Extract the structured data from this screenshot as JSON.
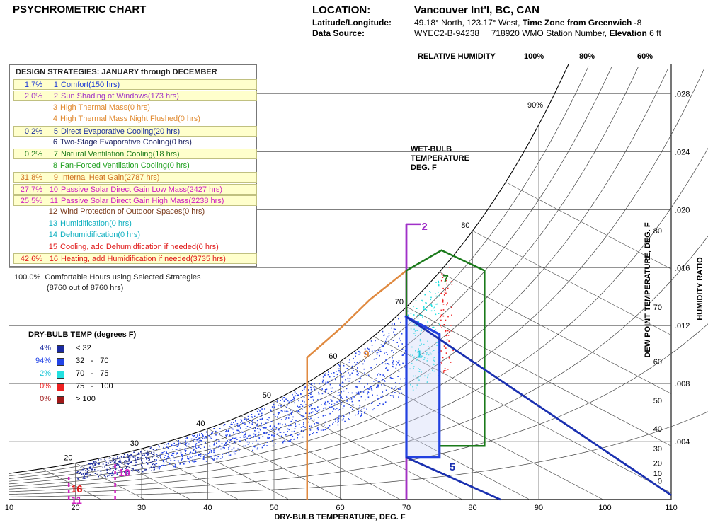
{
  "header": {
    "title": "PSYCHROMETRIC CHART",
    "location_label": "LOCATION:",
    "location_value": "Vancouver Int'l, BC, CAN",
    "latlon_label": "Latitude/Longitude:",
    "latlon_value_a": "49.18° North, 123.17° West,",
    "latlon_bold": "Time Zone from Greenwich",
    "latlon_tz": "-8",
    "source_label": "Data Source:",
    "source_value": "WYEC2-B-94238     718920 WMO Station Number,",
    "source_bold": "Elevation",
    "source_elev": "6 ft"
  },
  "strategies": {
    "title": "DESIGN STRATEGIES:  JANUARY through DECEMBER",
    "items": [
      {
        "pct": "1.7%",
        "num": "1",
        "label": "Comfort(150 hrs)",
        "color": "#1c3ad6",
        "selected": true
      },
      {
        "pct": "2.0%",
        "num": "2",
        "label": "Sun Shading of Windows(173 hrs)",
        "color": "#a030c8",
        "selected": true
      },
      {
        "pct": "",
        "num": "3",
        "label": "High Thermal Mass(0 hrs)",
        "color": "#e08a30",
        "selected": false
      },
      {
        "pct": "",
        "num": "4",
        "label": "High Thermal Mass Night Flushed(0 hrs)",
        "color": "#e08a30",
        "selected": false
      },
      {
        "pct": "0.2%",
        "num": "5",
        "label": "Direct Evaporative Cooling(20 hrs)",
        "color": "#1a2fa0",
        "selected": true
      },
      {
        "pct": "",
        "num": "6",
        "label": "Two-Stage Evaporative Cooling(0 hrs)",
        "color": "#1a2060",
        "selected": false
      },
      {
        "pct": "0.2%",
        "num": "7",
        "label": "Natural Ventilation Cooling(18 hrs)",
        "color": "#1a7a1a",
        "selected": true
      },
      {
        "pct": "",
        "num": "8",
        "label": "Fan-Forced Ventilation Cooling(0 hrs)",
        "color": "#20a020",
        "selected": false
      },
      {
        "pct": "31.8%",
        "num": "9",
        "label": "Internal Heat Gain(2787 hrs)",
        "color": "#d07020",
        "selected": true
      },
      {
        "pct": "27.7%",
        "num": "10",
        "label": "Passive Solar Direct Gain Low Mass(2427 hrs)",
        "color": "#d020c0",
        "selected": true
      },
      {
        "pct": "25.5%",
        "num": "11",
        "label": "Passive Solar Direct Gain High Mass(2238 hrs)",
        "color": "#d020c0",
        "selected": true
      },
      {
        "pct": "",
        "num": "12",
        "label": "Wind Protection of Outdoor Spaces(0 hrs)",
        "color": "#7a3a1a",
        "selected": false
      },
      {
        "pct": "",
        "num": "13",
        "label": "Humidification(0 hrs)",
        "color": "#10b0c0",
        "selected": false
      },
      {
        "pct": "",
        "num": "14",
        "label": "Dehumidification(0 hrs)",
        "color": "#10b0c0",
        "selected": false
      },
      {
        "pct": "",
        "num": "15",
        "label": "Cooling, add Dehumidfication if needed(0 hrs)",
        "color": "#e01818",
        "selected": false
      },
      {
        "pct": "42.6%",
        "num": "16",
        "label": "Heating, add Humidification if needed(3735 hrs)",
        "color": "#e01818",
        "selected": true
      }
    ]
  },
  "summary": {
    "line1": "100.0%  Comfortable Hours using Selected Strategies",
    "line2": "(8760 out of 8760 hrs)"
  },
  "legend": {
    "title": "DRY-BULB TEMP (degrees F)",
    "items": [
      {
        "pct": "4%",
        "range": "< 32",
        "color": "#1a2aa0",
        "pct_color": "#1a2aa0"
      },
      {
        "pct": "94%",
        "range": "32   -   70",
        "color": "#2244e8",
        "pct_color": "#2244e8"
      },
      {
        "pct": "2%",
        "range": "70   -   75",
        "color": "#22e0e0",
        "pct_color": "#22c8d8"
      },
      {
        "pct": "0%",
        "range": "75   -   100",
        "color": "#ee2020",
        "pct_color": "#ee2020"
      },
      {
        "pct": "0%",
        "range": "> 100",
        "color": "#a01818",
        "pct_color": "#a01818"
      }
    ]
  },
  "chart_data": {
    "type": "scatter",
    "title": "PSYCHROMETRIC CHART",
    "xlabel": "DRY-BULB TEMPERATURE, DEG. F",
    "ylabel": "HUMIDITY RATIO",
    "dewpoint_label": "DEW POINT TEMPERATURE, DEG. F",
    "wetbulb_label": [
      "WET-BULB",
      "TEMPERATURE",
      "DEG. F"
    ],
    "rh_label": "RELATIVE HUMIDITY",
    "rh_top_labels": [
      "100%",
      "80%",
      "60%"
    ],
    "rh_inner_label": "90%",
    "xlim": [
      10,
      110
    ],
    "ylim": [
      0,
      0.03
    ],
    "x_ticks": [
      "10",
      "20",
      "30",
      "40",
      "50",
      "60",
      "70",
      "80",
      "90",
      "100",
      "110"
    ],
    "w_ticks": [
      ".004",
      ".008",
      ".012",
      ".016",
      ".020",
      ".024",
      ".028"
    ],
    "dp_ticks": [
      "0",
      "10",
      "20",
      "30",
      "40",
      "50",
      "60",
      "70",
      "80"
    ],
    "wb_labels": [
      "20",
      "30",
      "40",
      "50",
      "60",
      "70",
      "80"
    ],
    "zone_labels": [
      "1",
      "2",
      "5",
      "7",
      "9",
      "10",
      "11",
      "16"
    ]
  }
}
